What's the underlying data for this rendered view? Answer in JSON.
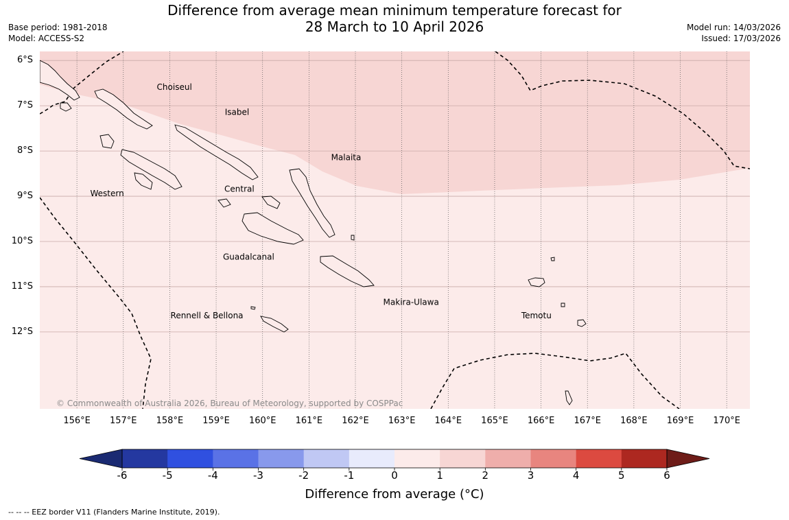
{
  "header": {
    "title_line1": "Difference from average mean minimum temperature forecast for",
    "title_line2": "28 March to 10 April 2026",
    "base_period": "Base period: 1981-2018",
    "model": "Model: ACCESS-S2",
    "model_run": "Model run: 14/03/2026",
    "issued": "Issued: 17/03/2026"
  },
  "map": {
    "lon_range": [
      155.2,
      170.5
    ],
    "lat_range": [
      -13.7,
      -5.8
    ],
    "lat_ticks": [
      {
        "value": -6,
        "label": "6°S"
      },
      {
        "value": -7,
        "label": "7°S"
      },
      {
        "value": -8,
        "label": "8°S"
      },
      {
        "value": -9,
        "label": "9°S"
      },
      {
        "value": -10,
        "label": "10°S"
      },
      {
        "value": -11,
        "label": "11°S"
      },
      {
        "value": -12,
        "label": "12°S"
      }
    ],
    "lon_ticks": [
      {
        "value": 156,
        "label": "156°E"
      },
      {
        "value": 157,
        "label": "157°E"
      },
      {
        "value": 158,
        "label": "158°E"
      },
      {
        "value": 159,
        "label": "159°E"
      },
      {
        "value": 160,
        "label": "160°E"
      },
      {
        "value": 161,
        "label": "161°E"
      },
      {
        "value": 162,
        "label": "162°E"
      },
      {
        "value": 163,
        "label": "163°E"
      },
      {
        "value": 164,
        "label": "164°E"
      },
      {
        "value": 165,
        "label": "165°E"
      },
      {
        "value": 166,
        "label": "166°E"
      },
      {
        "value": 167,
        "label": "167°E"
      },
      {
        "value": 168,
        "label": "168°E"
      },
      {
        "value": 169,
        "label": "169°E"
      },
      {
        "value": 170,
        "label": "170°E"
      }
    ],
    "regions": [
      {
        "name": "Choiseul",
        "lon": 158.1,
        "lat": -6.65
      },
      {
        "name": "Isabel",
        "lon": 159.45,
        "lat": -7.2
      },
      {
        "name": "Malaita",
        "lon": 161.8,
        "lat": -8.2
      },
      {
        "name": "Western",
        "lon": 156.65,
        "lat": -9.0
      },
      {
        "name": "Central",
        "lon": 159.5,
        "lat": -8.9
      },
      {
        "name": "Guadalcanal",
        "lon": 159.7,
        "lat": -10.4
      },
      {
        "name": "Makira-Ulawa",
        "lon": 163.2,
        "lat": -11.4
      },
      {
        "name": "Rennell & Bellona",
        "lon": 158.8,
        "lat": -11.7
      },
      {
        "name": "Temotu",
        "lon": 165.9,
        "lat": -11.7
      }
    ],
    "anomaly_fill_colors": {
      "band_1_to_2": "#f7d6d4",
      "band_0_to_1": "#fcebea"
    },
    "copyright": "© Commonwealth of Australia 2026, Bureau of Meteorology, supported by COSPPac"
  },
  "colorbar": {
    "ticks": [
      "-6",
      "-5",
      "-4",
      "-3",
      "-2",
      "-1",
      "0",
      "1",
      "2",
      "3",
      "4",
      "5",
      "6"
    ],
    "colors": [
      "#2438a0",
      "#3050e0",
      "#5a72e6",
      "#8899ec",
      "#c0c8f4",
      "#e8ebfc",
      "#fcebea",
      "#f7d6d4",
      "#efaeab",
      "#e8857f",
      "#dc4a40",
      "#ad2820"
    ],
    "under_color": "#1a2a72",
    "over_color": "#6e1c18",
    "label": "Difference from average (°C)"
  },
  "footnote": "--  --  -- EEZ border V11 (Flanders Marine Institute, 2019)."
}
